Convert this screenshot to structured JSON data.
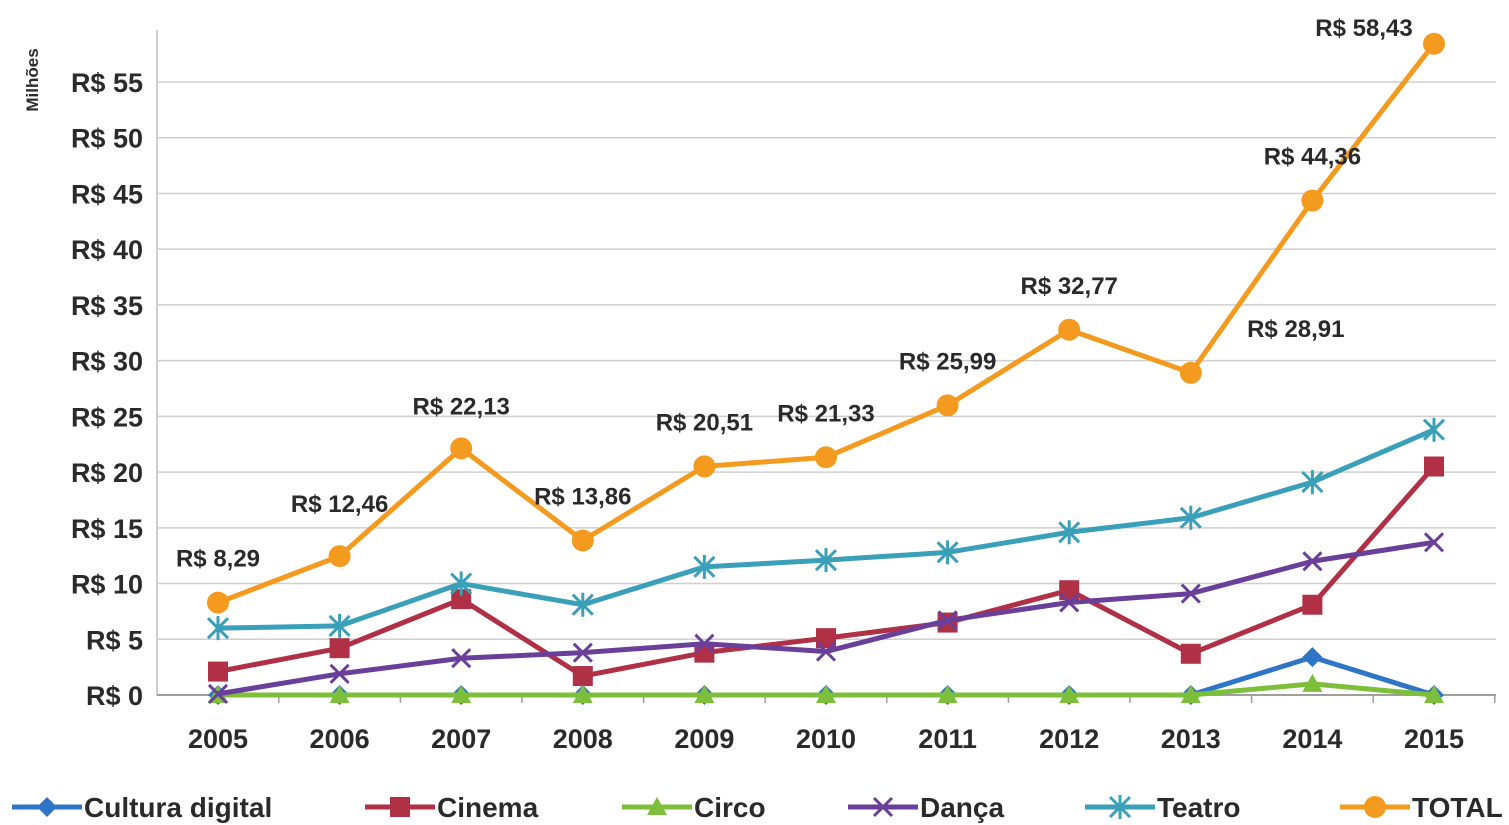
{
  "chart_data": {
    "type": "line",
    "ylabel": "Milhões",
    "xlabel": "",
    "title": "",
    "ylim": [
      0,
      60
    ],
    "yticks": [
      0,
      5,
      10,
      15,
      20,
      25,
      30,
      35,
      40,
      45,
      50,
      55
    ],
    "ytick_labels": [
      "R$ 0",
      "R$ 5",
      "R$ 10",
      "R$ 15",
      "R$ 20",
      "R$ 25",
      "R$ 30",
      "R$ 35",
      "R$ 40",
      "R$ 45",
      "R$ 50",
      "R$ 55"
    ],
    "categories": [
      "2005",
      "2006",
      "2007",
      "2008",
      "2009",
      "2010",
      "2011",
      "2012",
      "2013",
      "2014",
      "2015"
    ],
    "grid": true,
    "legend": "bottom",
    "series": [
      {
        "name": "Cultura digital",
        "color": "#2e75c7",
        "marker": "diamond",
        "values": [
          0,
          0,
          0,
          0,
          0,
          0,
          0,
          0,
          0,
          3.4,
          0
        ]
      },
      {
        "name": "Cinema",
        "color": "#b03046",
        "marker": "square",
        "values": [
          2.1,
          4.2,
          8.6,
          1.7,
          3.8,
          5.1,
          6.5,
          9.4,
          3.7,
          8.1,
          20.5
        ]
      },
      {
        "name": "Circo",
        "color": "#7dbf3a",
        "marker": "triangle",
        "values": [
          0,
          0,
          0,
          0,
          0,
          0,
          0,
          0,
          0,
          1.0,
          0
        ]
      },
      {
        "name": "Dança",
        "color": "#6a3f99",
        "marker": "x",
        "values": [
          0.1,
          1.9,
          3.3,
          3.8,
          4.6,
          3.9,
          6.7,
          8.3,
          9.1,
          12.0,
          13.7
        ]
      },
      {
        "name": "Teatro",
        "color": "#3a9fb8",
        "marker": "star",
        "values": [
          6.0,
          6.2,
          10.0,
          8.1,
          11.5,
          12.1,
          12.8,
          14.6,
          15.9,
          19.1,
          23.8
        ]
      },
      {
        "name": "TOTAL",
        "color": "#f39a1f",
        "marker": "circle",
        "values": [
          8.29,
          12.46,
          22.13,
          13.86,
          20.51,
          21.33,
          25.99,
          32.77,
          28.91,
          44.36,
          58.43
        ],
        "data_labels": [
          "R$ 8,29",
          "R$ 12,46",
          "R$ 22,13",
          "R$ 13,86",
          "R$ 20,51",
          "R$ 21,33",
          "R$ 25,99",
          "R$ 32,77",
          "R$ 28,91",
          "R$ 44,36",
          "R$ 58,43"
        ]
      }
    ]
  }
}
